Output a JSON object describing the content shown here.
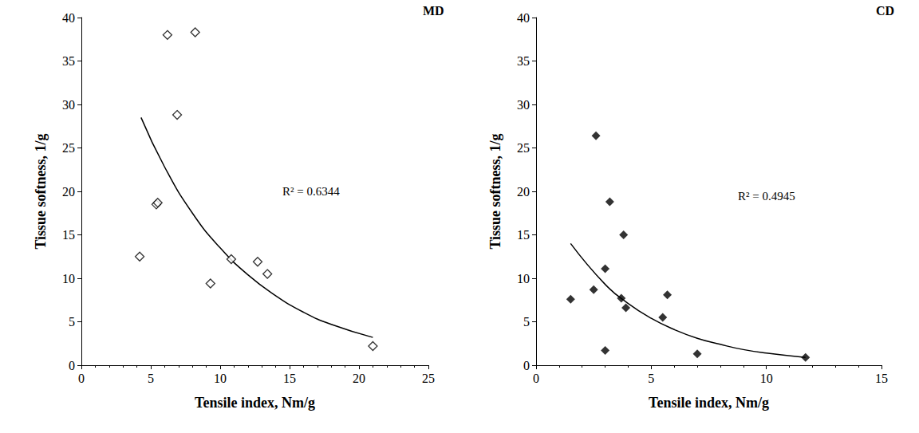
{
  "chart_data": [
    {
      "type": "scatter",
      "title": "MD",
      "x_label": "Tensile index, Nm/g",
      "y_label": "Tissue softness, 1/g",
      "xlim": [
        0,
        25
      ],
      "xticks": [
        0,
        5,
        10,
        15,
        20,
        25
      ],
      "ylim": [
        0,
        40
      ],
      "yticks": [
        0,
        5,
        10,
        15,
        20,
        25,
        30,
        35,
        40
      ],
      "grid": false,
      "annotations": [
        "R² = 0.6344"
      ],
      "series": [
        {
          "type": "scatter",
          "marker": "open diamond",
          "color": "#000000",
          "x": [
            4.2,
            5.4,
            5.5,
            6.2,
            6.9,
            8.2,
            9.3,
            10.8,
            12.7,
            13.4,
            21.0
          ],
          "values": [
            12.5,
            18.5,
            18.7,
            38.0,
            28.8,
            38.3,
            9.4,
            12.2,
            11.9,
            10.5,
            2.2
          ]
        },
        {
          "type": "line",
          "line_style": "solid",
          "color": "#000000",
          "x": [
            4.3,
            6,
            8,
            10,
            12,
            14,
            16,
            18,
            21
          ],
          "values": [
            28.5,
            22.8,
            17.5,
            13.5,
            10.4,
            8.0,
            6.1,
            4.7,
            3.2
          ]
        }
      ]
    },
    {
      "type": "scatter",
      "title": "CD",
      "x_label": "Tensile index, Nm/g",
      "y_label": "Tissue softness, 1/g",
      "xlim": [
        0,
        15
      ],
      "xticks": [
        0,
        5,
        10,
        15
      ],
      "ylim": [
        0,
        40
      ],
      "yticks": [
        0,
        5,
        10,
        15,
        20,
        25,
        30,
        35,
        40
      ],
      "grid": false,
      "annotations": [
        "R² = 0.4945"
      ],
      "series": [
        {
          "type": "scatter",
          "marker": "diamond",
          "color": "#000000",
          "x": [
            1.5,
            2.5,
            2.6,
            3.0,
            3.0,
            3.2,
            3.7,
            3.8,
            3.9,
            5.5,
            5.7,
            7.0,
            11.7
          ],
          "values": [
            7.6,
            8.7,
            26.4,
            11.1,
            1.7,
            18.8,
            7.7,
            15.0,
            6.6,
            5.5,
            8.1,
            1.3,
            0.9
          ]
        },
        {
          "type": "line",
          "line_style": "solid",
          "color": "#000000",
          "x": [
            1.5,
            3,
            4,
            5,
            6,
            7,
            8,
            9,
            10,
            11.7
          ],
          "values": [
            14,
            9.3,
            7.1,
            5.4,
            4.1,
            3.1,
            2.4,
            1.8,
            1.4,
            0.9
          ]
        }
      ]
    }
  ]
}
